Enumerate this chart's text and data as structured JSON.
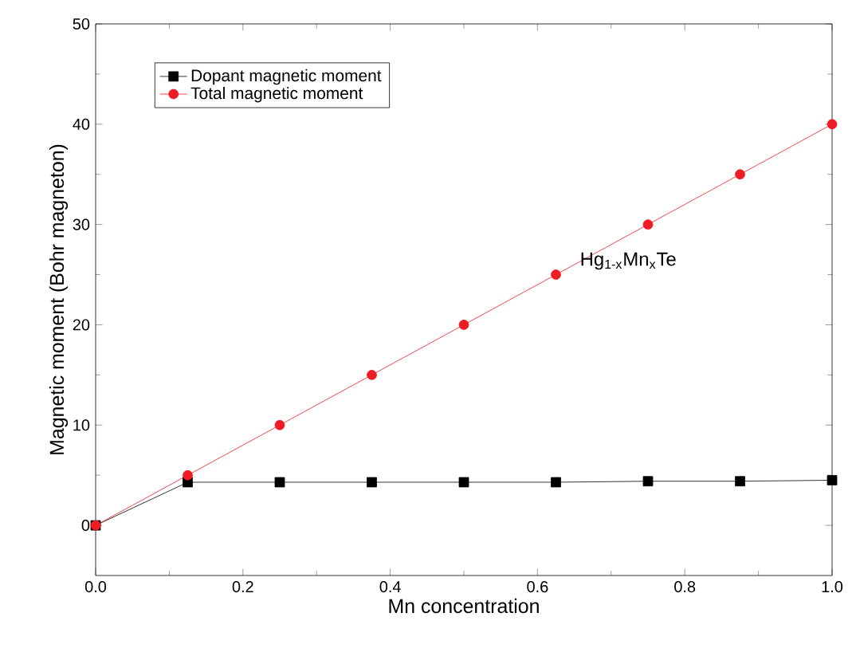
{
  "chart_data": {
    "type": "line",
    "xlabel": "Mn concentration",
    "ylabel": "Magnetic moment (Bohr magneton)",
    "x": [
      0,
      0.125,
      0.25,
      0.375,
      0.5,
      0.625,
      0.75,
      0.875,
      1.0
    ],
    "series": [
      {
        "name": "Dopant magnetic moment",
        "color": "#000000",
        "marker": "square",
        "values": [
          0,
          4.3,
          4.3,
          4.3,
          4.3,
          4.3,
          4.4,
          4.4,
          4.5
        ]
      },
      {
        "name": "Total magnetic moment",
        "color": "#ee1c25",
        "marker": "circle",
        "values": [
          0,
          5,
          10,
          15,
          20,
          25,
          30,
          35,
          40
        ]
      }
    ],
    "xlim": [
      0,
      1.0
    ],
    "ylim": [
      -5,
      50
    ],
    "xticks": [
      {
        "value": 0,
        "label": "0.0"
      },
      {
        "value": 0.2,
        "label": "0.2"
      },
      {
        "value": 0.4,
        "label": "0.4"
      },
      {
        "value": 0.6,
        "label": "0.6"
      },
      {
        "value": 0.8,
        "label": "0.8"
      },
      {
        "value": 1.0,
        "label": "1.0"
      }
    ],
    "yticks": [
      0,
      10,
      20,
      30,
      40,
      50
    ],
    "annotations": [
      "Hg$_{1-x}$Mn$_{x}$Te"
    ],
    "grid": false,
    "legend": "top left",
    "line_style": "solid"
  }
}
